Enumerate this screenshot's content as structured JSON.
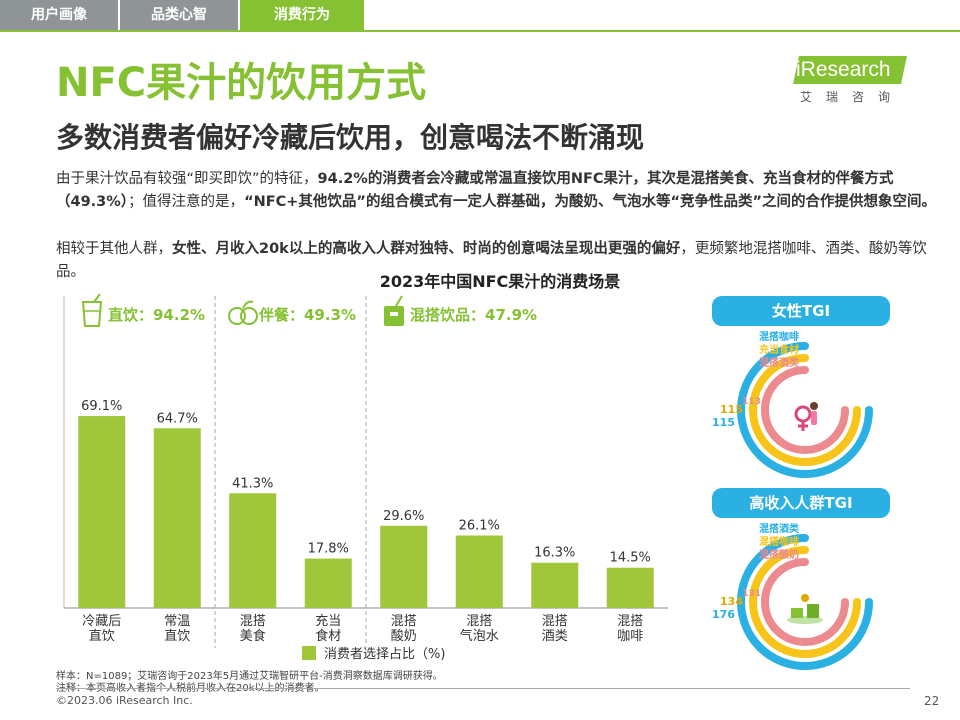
{
  "nav": {
    "tabs": [
      {
        "label": "用户画像"
      },
      {
        "label": "品类心智"
      },
      {
        "label": "消费行为"
      }
    ]
  },
  "header": {
    "title": "NFC果汁的饮用方式",
    "subtitle": "多数消费者偏好冷藏后饮用，创意喝法不断涌现"
  },
  "logo": {
    "text": "iResearch",
    "sub": "艾瑞咨询"
  },
  "body": {
    "p1": {
      "s1": "由于果汁饮品有较强“即买即饮”的特征，",
      "b1": "94.2%的消费者会冷藏或常温直接饮用NFC果汁，其次是混搭美食、充当食材的伴餐方式（49.3%）",
      "s2": "；值得注意的是，",
      "b2": "“NFC+其他饮品”的组合模式有一定人群基础，为酸奶、气泡水等“竞争性品类”之间的合作提供想象空间。"
    },
    "p2": {
      "s1": "相较于其他人群，",
      "b1": "女性、月收入20k以上的高收入人群对独特、时尚的创意喝法呈现出更强的偏好",
      "s2": "，更频繁地混搭咖啡、酒类、酸奶等饮品。"
    }
  },
  "colors": {
    "brand": "#86c133",
    "bar": "#a0c63c",
    "tab_gray": "#8f9596",
    "tgi_header": "#2ab0e3",
    "ring_blue": "#2ab0e3",
    "ring_yellow": "#f7c51a",
    "ring_pink": "#ec8a8f"
  },
  "chart_data": {
    "type": "bar",
    "title": "2023年中国NFC果汁的消费场景",
    "categories": [
      "冷藏后 直饮",
      "常温 直饮",
      "混搭 美食",
      "充当 食材",
      "混搭 酸奶",
      "混搭 气泡水",
      "混搭 酒类",
      "混搭 咖啡"
    ],
    "series": [
      {
        "name": "消费者选择占比（%)",
        "values": [
          69.1,
          64.7,
          41.3,
          17.8,
          29.6,
          26.1,
          16.3,
          14.5
        ]
      }
    ],
    "value_labels": [
      "69.1%",
      "64.7%",
      "41.3%",
      "17.8%",
      "29.6%",
      "26.1%",
      "16.3%",
      "14.5%"
    ],
    "groups": [
      {
        "label": "直饮：94.2%",
        "icon": "cup-icon",
        "range": [
          0,
          1
        ]
      },
      {
        "label": "伴餐：49.3%",
        "icon": "fruit-icon",
        "range": [
          2,
          3
        ]
      },
      {
        "label": "混搭饮品：47.9%",
        "icon": "drink-box-icon",
        "range": [
          4,
          7
        ]
      }
    ],
    "ylim": [
      0,
      90
    ],
    "grid": false,
    "legend_position": "bottom"
  },
  "tgi": [
    {
      "header": "女性TGI",
      "icon": "female-icon",
      "items": [
        {
          "label": "混搭咖啡",
          "value": 115
        },
        {
          "label": "充当食材",
          "value": 115
        },
        {
          "label": "混搭酒类",
          "value": 113
        }
      ],
      "value_labels": [
        "115",
        "115",
        "113"
      ]
    },
    {
      "header": "高收入人群TGI",
      "icon": "money-icon",
      "items": [
        {
          "label": "混搭酒类",
          "value": 176
        },
        {
          "label": "混搭咖啡",
          "value": 134
        },
        {
          "label": "混搭酸奶",
          "value": 131
        }
      ],
      "value_labels": [
        "176",
        "134",
        "131"
      ]
    }
  ],
  "footer": {
    "note1": "样本：N=1089；艾瑞咨询于2023年5月通过艾瑞智研平台-消费洞察数据库调研获得。",
    "note2": "注释：本页高收入者指个人税前月收入在20k以上的消费者。",
    "copyright": "©2023.06 iResearch Inc.",
    "page": "22"
  }
}
